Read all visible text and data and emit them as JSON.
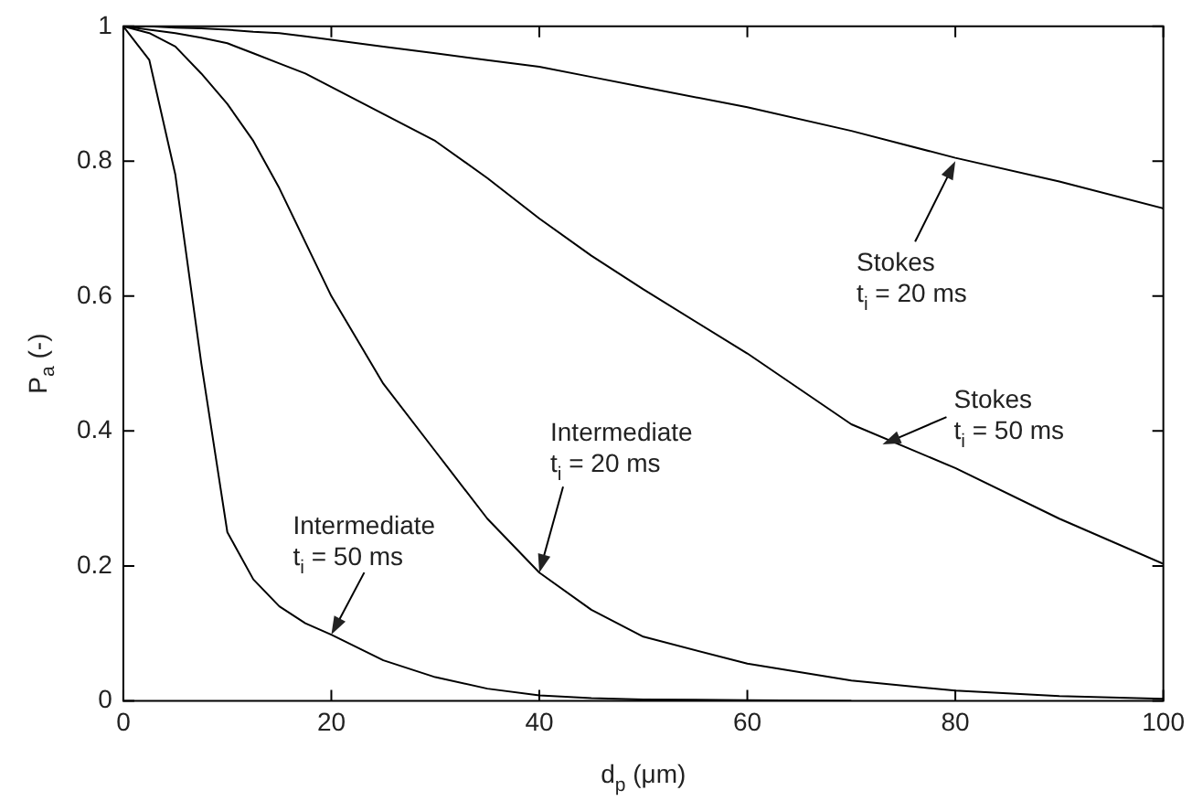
{
  "chart_data": {
    "type": "line",
    "xlabel": "d$_{p}$ (μm)",
    "ylabel": "P$_{a}$ (-)",
    "x": [
      0,
      2.5,
      5,
      7.5,
      10,
      12.5,
      15,
      17.5,
      20,
      25,
      30,
      35,
      40,
      45,
      50,
      60,
      70,
      80,
      90,
      100
    ],
    "series": [
      {
        "color": "#000000",
        "x": [
          0,
          2.5,
          5,
          7.5,
          10,
          12.5,
          15,
          17.5,
          20,
          25,
          30,
          35,
          40,
          45,
          50,
          60,
          70
        ],
        "values": [
          1,
          0.95,
          0.78,
          0.5,
          0.25,
          0.18,
          0.14,
          0.115,
          0.098,
          0.06,
          0.035,
          0.018,
          0.008,
          0.004,
          0.002,
          0.001,
          0
        ]
      },
      {
        "color": "#000000",
        "values": [
          1,
          0.99,
          0.97,
          0.93,
          0.885,
          0.83,
          0.76,
          0.68,
          0.6,
          0.47,
          0.37,
          0.27,
          0.19,
          0.135,
          0.095,
          0.055,
          0.03,
          0.015,
          0.007,
          0.003
        ]
      },
      {
        "color": "#000000",
        "values": [
          1,
          0.995,
          0.99,
          0.983,
          0.975,
          0.96,
          0.945,
          0.93,
          0.91,
          0.87,
          0.83,
          0.775,
          0.715,
          0.66,
          0.61,
          0.515,
          0.41,
          0.345,
          0.27,
          0.203
        ]
      },
      {
        "color": "#000000",
        "values": [
          1,
          1,
          0.998,
          0.997,
          0.995,
          0.992,
          0.99,
          0.985,
          0.98,
          0.97,
          0.96,
          0.95,
          0.94,
          0.925,
          0.91,
          0.88,
          0.845,
          0.805,
          0.77,
          0.73
        ]
      }
    ],
    "xlim": [
      0,
      100
    ],
    "xticks": [
      0,
      20,
      40,
      60,
      80,
      100
    ],
    "ylim": [
      0,
      1
    ],
    "yticks": [
      0,
      0.2,
      0.4,
      0.6,
      0.8,
      1
    ],
    "grid": false,
    "legend": false,
    "marker": "none",
    "line_style": "solid",
    "annotations": [
      {
        "text": "Stokes\nt$_{i}$ = 20 ms",
        "x": 80,
        "y": 0.8
      },
      {
        "text": "Stokes\nt$_{i}$ = 50 ms",
        "x": 73,
        "y": 0.38
      },
      {
        "text": "Intermediate\nt$_{i}$ = 20 ms",
        "x": 40,
        "y": 0.19
      },
      {
        "text": "Intermediate\nt$_{i}$ = 50 ms",
        "x": 20,
        "y": 0.098
      }
    ]
  }
}
